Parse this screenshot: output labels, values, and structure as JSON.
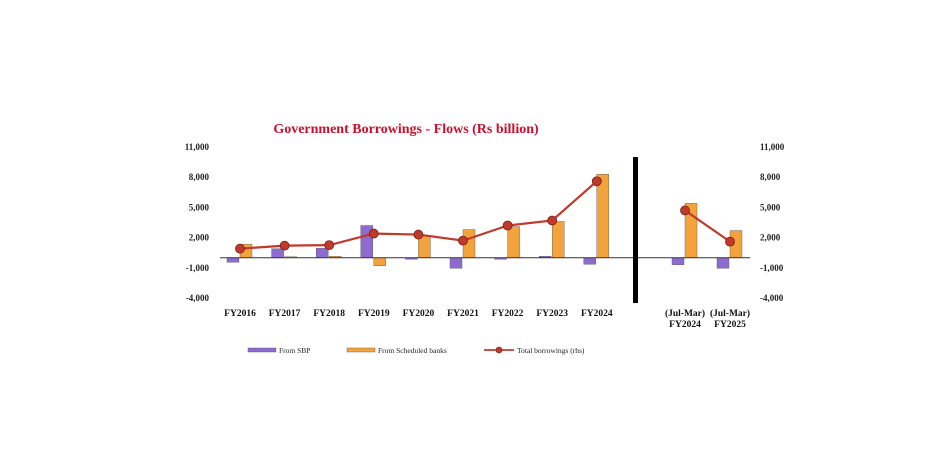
{
  "chart_data": {
    "type": "bar",
    "title": "Government Borrowings - Flows (Rs billion)",
    "categories": [
      "FY2016",
      "FY2017",
      "FY2018",
      "FY2019",
      "FY2020",
      "FY2021",
      "FY2022",
      "FY2023",
      "FY2024"
    ],
    "categories_period": [
      [
        "(Jul-Mar)",
        "FY2024"
      ],
      [
        "(Jul-Mar)",
        "FY2025"
      ]
    ],
    "yticks": [
      "11,000",
      "8,000",
      "5,000",
      "2,000",
      "-1,000",
      "-4,000"
    ],
    "ylim": [
      -4000,
      11000
    ],
    "y2lim": [
      -4000,
      11000
    ],
    "series": [
      {
        "name": "From SBP",
        "type": "bar",
        "color": "#8e6bd1",
        "values": [
          -450,
          900,
          950,
          3200,
          -150,
          -1050,
          -150,
          150,
          -650
        ],
        "values_period": [
          -700,
          -1050
        ]
      },
      {
        "name": "From Scheduled banks",
        "type": "bar",
        "color": "#f3a33c",
        "values": [
          1350,
          100,
          150,
          -800,
          2200,
          2800,
          3100,
          3600,
          8300
        ],
        "values_period": [
          5400,
          2700
        ]
      },
      {
        "name": "Total borrowings (rhs)",
        "type": "line",
        "color": "#c0392b",
        "values": [
          900,
          1200,
          1250,
          2400,
          2300,
          1700,
          3200,
          3700,
          7600
        ],
        "values_period": [
          4700,
          1600
        ]
      }
    ],
    "legend_position": "bottom"
  }
}
